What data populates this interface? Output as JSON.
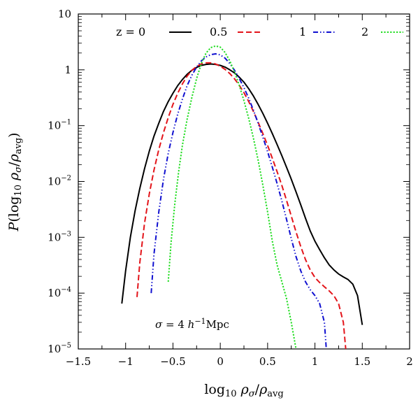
{
  "chart_data": {
    "type": "line",
    "xlabel": "log10 ρσ/ρavg",
    "ylabel": "P(log10 ρσ/ρavg)",
    "xlim": [
      -1.5,
      2
    ],
    "ylim": [
      1e-05,
      10
    ],
    "yscale": "log",
    "grid": false,
    "legend_position": "top",
    "xticks": [
      -1.5,
      -1,
      -0.5,
      0,
      0.5,
      1,
      1.5,
      2
    ],
    "xtick_labels": [
      "−1.5",
      "−1",
      "−0.5",
      "0",
      "0.5",
      "1",
      "1.5",
      "2"
    ],
    "yticks": [
      {
        "value": 1e-05,
        "base": "10",
        "exp": "−5"
      },
      {
        "value": 0.0001,
        "base": "10",
        "exp": "−4"
      },
      {
        "value": 0.001,
        "base": "10",
        "exp": "−3"
      },
      {
        "value": 0.01,
        "base": "10",
        "exp": "−2"
      },
      {
        "value": 0.1,
        "base": "10",
        "exp": "−1"
      },
      {
        "value": 1,
        "base": "1",
        "exp": ""
      },
      {
        "value": 10,
        "base": "10",
        "exp": ""
      }
    ],
    "annotation": "σ = 4 h⁻¹Mpc",
    "series": [
      {
        "name": "z = 0",
        "color": "#000000",
        "dash": "solid",
        "points": [
          [
            -1.04,
            6.5e-05
          ],
          [
            -1.0,
            0.00025
          ],
          [
            -0.95,
            0.001
          ],
          [
            -0.9,
            0.003
          ],
          [
            -0.85,
            0.0075
          ],
          [
            -0.8,
            0.017
          ],
          [
            -0.75,
            0.035
          ],
          [
            -0.7,
            0.065
          ],
          [
            -0.65,
            0.11
          ],
          [
            -0.6,
            0.18
          ],
          [
            -0.55,
            0.27
          ],
          [
            -0.5,
            0.38
          ],
          [
            -0.45,
            0.52
          ],
          [
            -0.4,
            0.67
          ],
          [
            -0.35,
            0.83
          ],
          [
            -0.3,
            0.98
          ],
          [
            -0.25,
            1.1
          ],
          [
            -0.2,
            1.2
          ],
          [
            -0.15,
            1.25
          ],
          [
            -0.1,
            1.27
          ],
          [
            -0.05,
            1.25
          ],
          [
            0.0,
            1.2
          ],
          [
            0.05,
            1.12
          ],
          [
            0.1,
            1.0
          ],
          [
            0.15,
            0.88
          ],
          [
            0.2,
            0.74
          ],
          [
            0.25,
            0.6
          ],
          [
            0.3,
            0.46
          ],
          [
            0.35,
            0.34
          ],
          [
            0.4,
            0.24
          ],
          [
            0.45,
            0.165
          ],
          [
            0.5,
            0.11
          ],
          [
            0.55,
            0.072
          ],
          [
            0.6,
            0.046
          ],
          [
            0.65,
            0.029
          ],
          [
            0.7,
            0.018
          ],
          [
            0.75,
            0.011
          ],
          [
            0.8,
            0.0065
          ],
          [
            0.85,
            0.0038
          ],
          [
            0.9,
            0.0022
          ],
          [
            0.95,
            0.0013
          ],
          [
            1.0,
            0.00085
          ],
          [
            1.05,
            0.0006
          ],
          [
            1.1,
            0.00043
          ],
          [
            1.15,
            0.00032
          ],
          [
            1.2,
            0.00026
          ],
          [
            1.25,
            0.00022
          ],
          [
            1.3,
            0.000195
          ],
          [
            1.35,
            0.000175
          ],
          [
            1.4,
            0.000145
          ],
          [
            1.45,
            9e-05
          ],
          [
            1.5,
            2.7e-05
          ]
        ]
      },
      {
        "name": "0.5",
        "color": "#e3141a",
        "dash": "dashed",
        "points": [
          [
            -0.88,
            8.5e-05
          ],
          [
            -0.85,
            0.00035
          ],
          [
            -0.8,
            0.0018
          ],
          [
            -0.75,
            0.006
          ],
          [
            -0.7,
            0.016
          ],
          [
            -0.65,
            0.037
          ],
          [
            -0.6,
            0.075
          ],
          [
            -0.55,
            0.14
          ],
          [
            -0.5,
            0.24
          ],
          [
            -0.45,
            0.38
          ],
          [
            -0.4,
            0.56
          ],
          [
            -0.35,
            0.77
          ],
          [
            -0.3,
            0.98
          ],
          [
            -0.25,
            1.15
          ],
          [
            -0.2,
            1.28
          ],
          [
            -0.15,
            1.33
          ],
          [
            -0.1,
            1.33
          ],
          [
            -0.05,
            1.27
          ],
          [
            0.0,
            1.16
          ],
          [
            0.05,
            1.02
          ],
          [
            0.1,
            0.86
          ],
          [
            0.15,
            0.69
          ],
          [
            0.2,
            0.53
          ],
          [
            0.25,
            0.39
          ],
          [
            0.3,
            0.27
          ],
          [
            0.35,
            0.18
          ],
          [
            0.4,
            0.115
          ],
          [
            0.45,
            0.072
          ],
          [
            0.5,
            0.044
          ],
          [
            0.55,
            0.026
          ],
          [
            0.6,
            0.015
          ],
          [
            0.65,
            0.0085
          ],
          [
            0.7,
            0.0046
          ],
          [
            0.75,
            0.0024
          ],
          [
            0.8,
            0.00125
          ],
          [
            0.85,
            0.00068
          ],
          [
            0.9,
            0.0004
          ],
          [
            0.95,
            0.00026
          ],
          [
            1.0,
            0.00019
          ],
          [
            1.05,
            0.000155
          ],
          [
            1.1,
            0.00013
          ],
          [
            1.15,
            0.00011
          ],
          [
            1.2,
            9e-05
          ],
          [
            1.25,
            6.5e-05
          ],
          [
            1.3,
            3e-05
          ],
          [
            1.33,
            8e-06
          ]
        ]
      },
      {
        "name": "1",
        "color": "#1010d0",
        "dash": "dashdotdot",
        "points": [
          [
            -0.73,
            0.0001
          ],
          [
            -0.7,
            0.0005
          ],
          [
            -0.65,
            0.0028
          ],
          [
            -0.6,
            0.011
          ],
          [
            -0.55,
            0.032
          ],
          [
            -0.5,
            0.075
          ],
          [
            -0.45,
            0.16
          ],
          [
            -0.4,
            0.3
          ],
          [
            -0.35,
            0.52
          ],
          [
            -0.3,
            0.8
          ],
          [
            -0.25,
            1.12
          ],
          [
            -0.2,
            1.45
          ],
          [
            -0.15,
            1.7
          ],
          [
            -0.1,
            1.87
          ],
          [
            -0.05,
            1.93
          ],
          [
            0.0,
            1.85
          ],
          [
            0.05,
            1.62
          ],
          [
            0.1,
            1.3
          ],
          [
            0.15,
            0.98
          ],
          [
            0.2,
            0.7
          ],
          [
            0.25,
            0.48
          ],
          [
            0.3,
            0.31
          ],
          [
            0.35,
            0.19
          ],
          [
            0.4,
            0.11
          ],
          [
            0.45,
            0.062
          ],
          [
            0.5,
            0.034
          ],
          [
            0.55,
            0.018
          ],
          [
            0.6,
            0.0092
          ],
          [
            0.65,
            0.0045
          ],
          [
            0.7,
            0.0021
          ],
          [
            0.75,
            0.00095
          ],
          [
            0.8,
            0.00045
          ],
          [
            0.85,
            0.00025
          ],
          [
            0.9,
            0.00016
          ],
          [
            0.95,
            0.000115
          ],
          [
            1.0,
            9e-05
          ],
          [
            1.05,
            6.5e-05
          ],
          [
            1.1,
            3e-05
          ],
          [
            1.12,
            1e-05
          ]
        ]
      },
      {
        "name": "2",
        "color": "#22dd22",
        "dash": "dotted",
        "points": [
          [
            -0.55,
            0.00016
          ],
          [
            -0.52,
            0.0008
          ],
          [
            -0.48,
            0.004
          ],
          [
            -0.44,
            0.015
          ],
          [
            -0.4,
            0.045
          ],
          [
            -0.35,
            0.13
          ],
          [
            -0.3,
            0.32
          ],
          [
            -0.25,
            0.7
          ],
          [
            -0.2,
            1.3
          ],
          [
            -0.15,
            2.0
          ],
          [
            -0.1,
            2.5
          ],
          [
            -0.05,
            2.68
          ],
          [
            0.0,
            2.55
          ],
          [
            0.05,
            2.05
          ],
          [
            0.1,
            1.45
          ],
          [
            0.15,
            0.92
          ],
          [
            0.2,
            0.53
          ],
          [
            0.25,
            0.28
          ],
          [
            0.3,
            0.135
          ],
          [
            0.35,
            0.06
          ],
          [
            0.4,
            0.024
          ],
          [
            0.45,
            0.0085
          ],
          [
            0.5,
            0.0028
          ],
          [
            0.55,
            0.00085
          ],
          [
            0.6,
            0.00032
          ],
          [
            0.65,
            0.00016
          ],
          [
            0.7,
            8e-05
          ],
          [
            0.75,
            3e-05
          ],
          [
            0.8,
            1e-05
          ]
        ]
      }
    ]
  }
}
